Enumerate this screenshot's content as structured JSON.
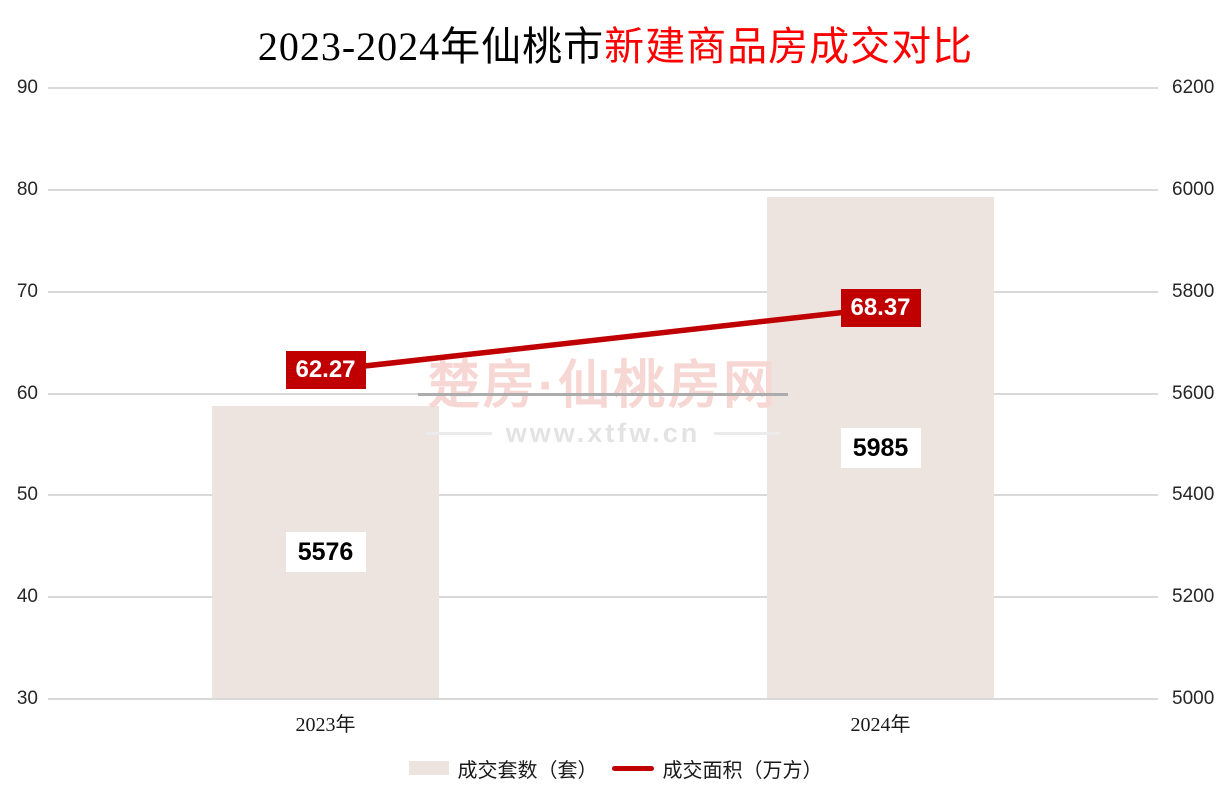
{
  "page": {
    "background": "#FFFFFF"
  },
  "title": {
    "black_part": "2023-2024年仙桃市",
    "red_part": "新建商品房成交对比",
    "red_color": "#FF0000"
  },
  "watermark": {
    "line1": "楚房·仙桃房网",
    "line2": "www.xtfw.cn"
  },
  "legend": {
    "bar_label": "成交套数（套）",
    "line_label": "成交面积（万方）"
  },
  "chart_data": {
    "type": "bar",
    "title": "2023-2024年仙桃市新建商品房成交对比",
    "categories": [
      "2023年",
      "2024年"
    ],
    "series": [
      {
        "name": "成交套数（套）",
        "chart_type": "bar",
        "axis": "right",
        "values": [
          5576,
          5985
        ],
        "color": "#EDE4E0"
      },
      {
        "name": "成交面积（万方）",
        "chart_type": "line",
        "axis": "left",
        "values": [
          62.27,
          68.37
        ],
        "color": "#C00000"
      }
    ],
    "left_axis": {
      "min": 30,
      "max": 90,
      "step": 10,
      "ticks": [
        90,
        80,
        70,
        60,
        50,
        40,
        30
      ]
    },
    "right_axis": {
      "min": 5000,
      "max": 6200,
      "step": 200,
      "ticks": [
        6200,
        6000,
        5800,
        5600,
        5400,
        5200,
        5000
      ]
    },
    "grid": true,
    "gridline_color": "#D9D9D9",
    "legend_position": "bottom",
    "data_labels": {
      "bar_label_bg": "#FFFFFF",
      "line_label_bg": "#C00000"
    }
  }
}
